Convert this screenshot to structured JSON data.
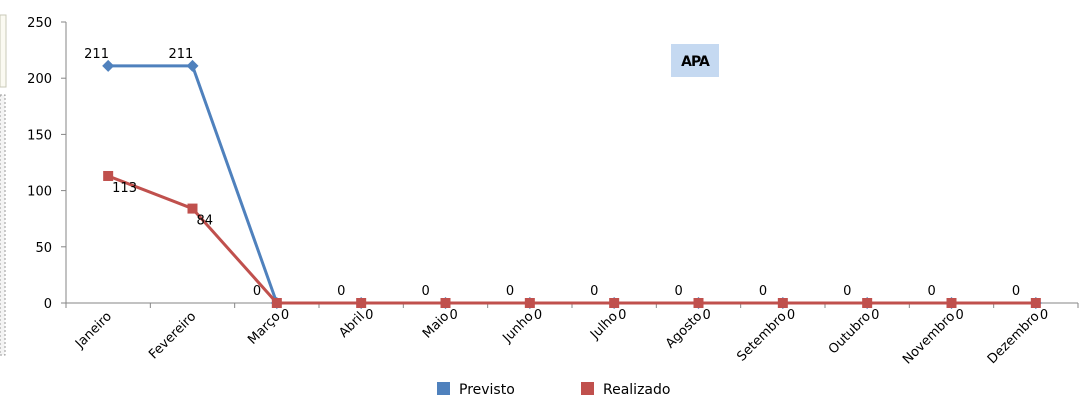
{
  "chart_data": {
    "type": "line",
    "title": "APA",
    "categories": [
      "Janeiro",
      "Fevereiro",
      "Março",
      "Abril",
      "Maio",
      "Junho",
      "Julho",
      "Agosto",
      "Setembro",
      "Outubro",
      "Novembro",
      "Dezembro"
    ],
    "series": [
      {
        "name": "Previsto",
        "values": [
          211,
          211,
          0,
          0,
          0,
          0,
          0,
          0,
          0,
          0,
          0,
          0
        ],
        "color": "#4f81bd",
        "marker": "diamond"
      },
      {
        "name": "Realizado",
        "values": [
          113,
          84,
          0,
          0,
          0,
          0,
          0,
          0,
          0,
          0,
          0,
          0
        ],
        "color": "#c0504d",
        "marker": "square"
      }
    ],
    "ylim": [
      0,
      250
    ],
    "yticks": [
      0,
      50,
      100,
      150,
      200,
      250
    ],
    "grid": false,
    "legend": "bottom"
  }
}
